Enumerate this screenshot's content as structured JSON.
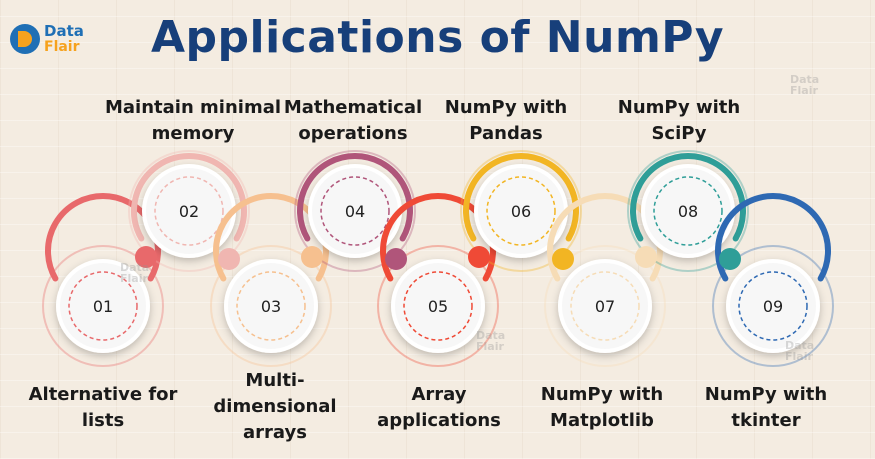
{
  "logo": {
    "line1": "Data",
    "line2": "Flair"
  },
  "title": "Applications of NumPy",
  "steps": [
    {
      "number": "01",
      "label": "Alternative for lists",
      "color": "#e8696b"
    },
    {
      "number": "02",
      "label": "Maintain minimal memory",
      "color": "#f0b6b1"
    },
    {
      "number": "03",
      "label": "Multi-dimensional arrays",
      "color": "#f6c08f"
    },
    {
      "number": "04",
      "label": "Mathematical operations",
      "color": "#b0557a"
    },
    {
      "number": "05",
      "label": "Array applications",
      "color": "#ef4a36"
    },
    {
      "number": "06",
      "label": "NumPy with Pandas",
      "color": "#f2b523"
    },
    {
      "number": "07",
      "label": "NumPy with Matplotlib",
      "color": "#f6dcb6"
    },
    {
      "number": "08",
      "label": "NumPy with SciPy",
      "color": "#2f9e98"
    },
    {
      "number": "09",
      "label": "NumPy with tkinter",
      "color": "#2e69b3"
    }
  ]
}
